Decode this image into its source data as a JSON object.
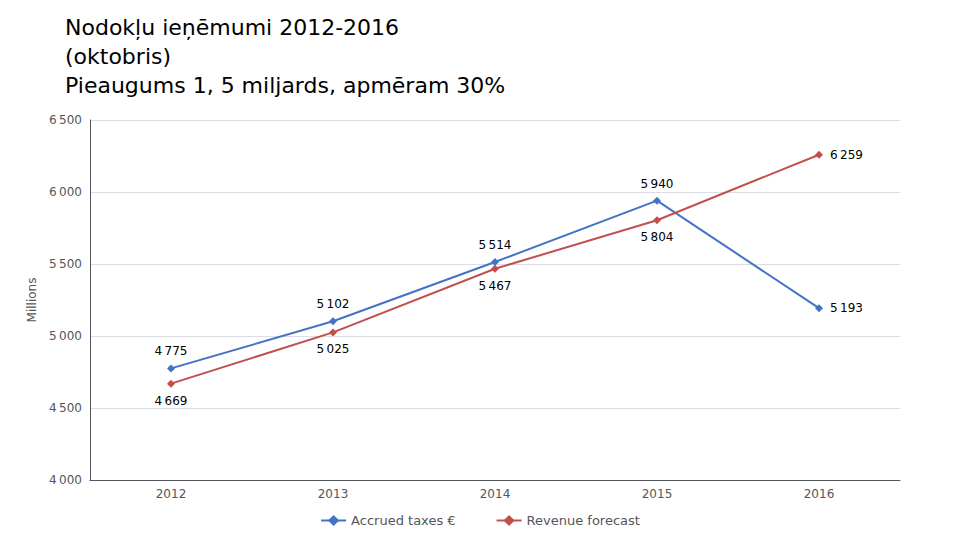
{
  "chart_data": {
    "type": "line",
    "title": "Nodokļu ieņēmumi 2012-2016\n(oktobris)\nPieaugums 1, 5 miljards, apmēram 30%",
    "y_label": "Millions",
    "categories": [
      "2012",
      "2013",
      "2014",
      "2015",
      "2016"
    ],
    "series": [
      {
        "name": "Accrued taxes €",
        "color": "#4472C4",
        "marker": "diamond",
        "values": [
          4775,
          5102,
          5514,
          5940,
          5193
        ],
        "value_labels": [
          "4 775",
          "5 102",
          "5 514",
          "5 940",
          "5 193"
        ]
      },
      {
        "name": "Revenue forecast",
        "color": "#C0504D",
        "marker": "diamond",
        "values": [
          4669,
          5025,
          5467,
          5804,
          6259
        ],
        "value_labels": [
          "4 669",
          "5 025",
          "5 467",
          "5 804",
          "6 259"
        ]
      }
    ],
    "ylim": [
      4000,
      6500
    ],
    "yticks": [
      {
        "value": 4000,
        "label": "4 000"
      },
      {
        "value": 4500,
        "label": "4 500"
      },
      {
        "value": 5000,
        "label": "5 000"
      },
      {
        "value": 5500,
        "label": "5 500"
      },
      {
        "value": 6000,
        "label": "6 000"
      },
      {
        "value": 6500,
        "label": "6 500"
      }
    ],
    "grid": true,
    "legend": "bottom",
    "data_labels": true
  }
}
